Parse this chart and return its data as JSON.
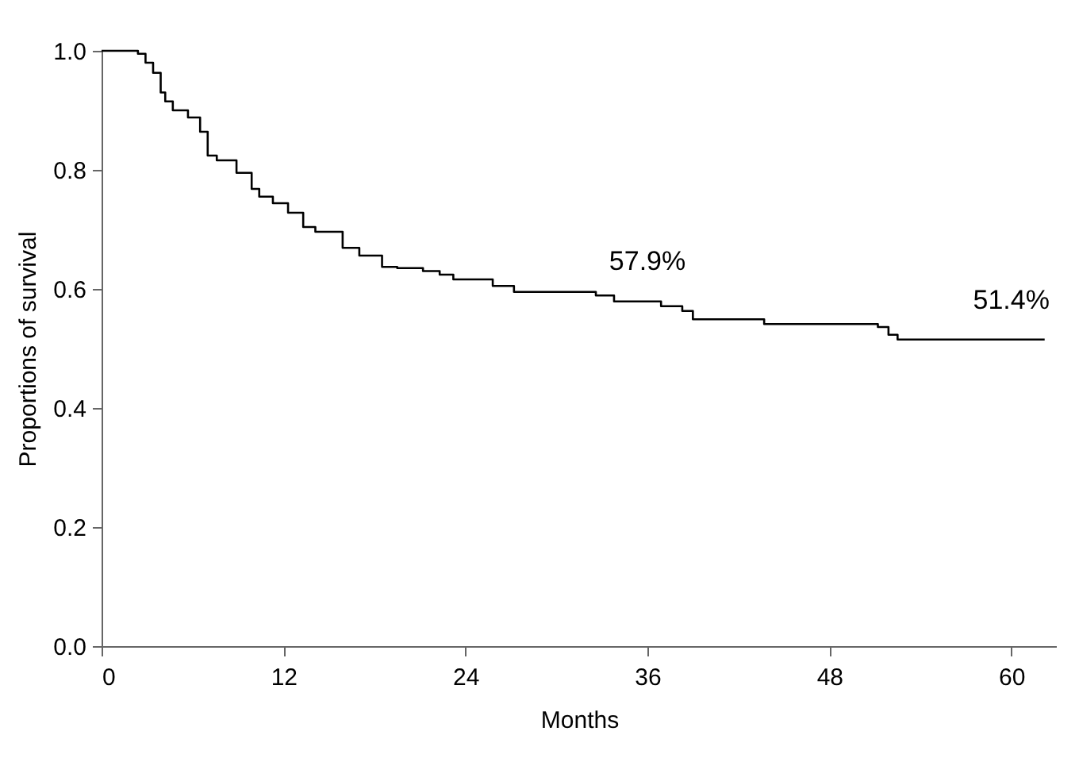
{
  "chart_data": {
    "type": "step",
    "xlabel": "Months",
    "ylabel": "Proportions of survival",
    "x": [
      0,
      2.4,
      2.9,
      3.4,
      3.9,
      4.2,
      4.7,
      5.7,
      6.5,
      7.0,
      7.6,
      8.9,
      9.9,
      10.4,
      11.3,
      12.3,
      13.3,
      14.1,
      15.9,
      17.0,
      18.5,
      19.5,
      21.2,
      22.3,
      23.2,
      25.8,
      27.2,
      32.6,
      33.8,
      36.9,
      38.3,
      39.0,
      43.7,
      51.2,
      51.9,
      52.5,
      62.2
    ],
    "series": [
      {
        "color": "#000000",
        "values": [
          1.0,
          0.995,
          0.98,
          0.963,
          0.93,
          0.915,
          0.9,
          0.888,
          0.864,
          0.824,
          0.816,
          0.795,
          0.768,
          0.755,
          0.744,
          0.728,
          0.704,
          0.696,
          0.669,
          0.656,
          0.637,
          0.635,
          0.63,
          0.624,
          0.616,
          0.605,
          0.595,
          0.589,
          0.579,
          0.571,
          0.563,
          0.549,
          0.541,
          0.536,
          0.523,
          0.515,
          0.515
        ]
      }
    ],
    "annotations": [
      {
        "text": "57.9%",
        "x": 36,
        "y": 0.579
      },
      {
        "text": "51.4%",
        "x": 60,
        "y": 0.514
      }
    ],
    "xlim": [
      0,
      63
    ],
    "xticks": [
      0,
      12,
      24,
      36,
      48,
      60
    ],
    "ylim": [
      0,
      1.0
    ],
    "yticks": [
      {
        "value": 0,
        "label": "0.0"
      },
      {
        "value": 0.2,
        "label": "0.2"
      },
      {
        "value": 0.4,
        "label": "0.4"
      },
      {
        "value": 0.6,
        "label": "0.6"
      },
      {
        "value": 0.8,
        "label": "0.8"
      },
      {
        "value": 1.0,
        "label": "1.0"
      }
    ],
    "grid": false,
    "legend": false
  }
}
